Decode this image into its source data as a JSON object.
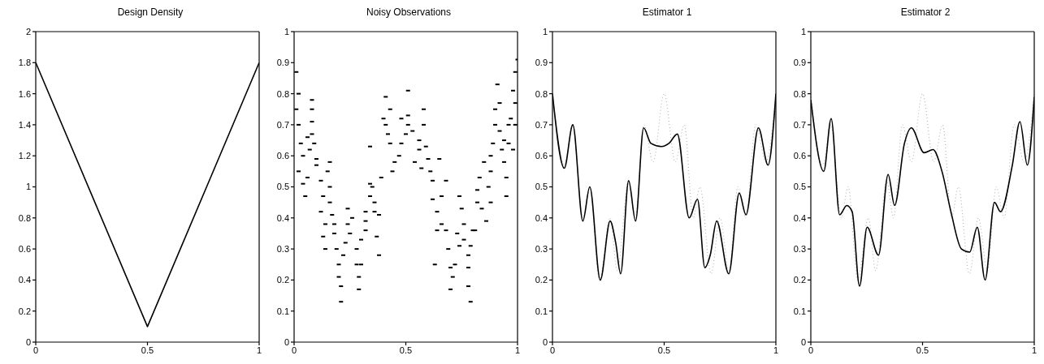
{
  "chart_data": [
    {
      "type": "line",
      "title": "Design Density",
      "xlim": [
        0,
        1
      ],
      "xticks": [
        0,
        0.5,
        1
      ],
      "ylim": [
        0,
        2
      ],
      "yticks": [
        0,
        0.2,
        0.4,
        0.6,
        0.8,
        1,
        1.2,
        1.4,
        1.6,
        1.8,
        2
      ],
      "marker": "none",
      "series": [
        {
          "color": "#000000",
          "line_style": "solid",
          "x": [
            0,
            0.5,
            1
          ],
          "values": [
            1.8,
            0.1,
            1.8
          ]
        }
      ]
    },
    {
      "type": "scatter",
      "title": "Noisy Observations",
      "xlim": [
        0,
        1
      ],
      "xticks": [
        0,
        0.5,
        1
      ],
      "ylim": [
        0,
        1
      ],
      "yticks": [
        0,
        0.1,
        0.2,
        0.3,
        0.4,
        0.5,
        0.6,
        0.7,
        0.8,
        0.9,
        1
      ],
      "marker": "square",
      "series": [
        {
          "color": "#000000",
          "x": [
            0.01,
            0.02,
            0.01,
            0.02,
            0.03,
            0.04,
            0.02,
            0.04,
            0.05,
            0.06,
            0.08,
            0.08,
            0.08,
            0.08,
            0.09,
            0.1,
            0.07,
            0.06,
            0.1,
            0.12,
            0.13,
            0.15,
            0.16,
            0.16,
            0.12,
            0.14,
            0.13,
            0.14,
            0.16,
            0.17,
            0.18,
            0.18,
            0.19,
            0.2,
            0.2,
            0.21,
            0.21,
            0.22,
            0.23,
            0.24,
            0.24,
            0.25,
            0.26,
            0.28,
            0.28,
            0.29,
            0.29,
            0.3,
            0.3,
            0.32,
            0.32,
            0.32,
            0.34,
            0.34,
            0.34,
            0.35,
            0.36,
            0.37,
            0.38,
            0.36,
            0.39,
            0.38,
            0.4,
            0.41,
            0.41,
            0.43,
            0.42,
            0.43,
            0.44,
            0.45,
            0.47,
            0.48,
            0.48,
            0.5,
            0.51,
            0.51,
            0.51,
            0.53,
            0.54,
            0.56,
            0.56,
            0.57,
            0.58,
            0.58,
            0.59,
            0.6,
            0.61,
            0.62,
            0.62,
            0.63,
            0.64,
            0.64,
            0.65,
            0.66,
            0.66,
            0.68,
            0.68,
            0.69,
            0.7,
            0.7,
            0.71,
            0.72,
            0.73,
            0.74,
            0.74,
            0.75,
            0.76,
            0.76,
            0.78,
            0.78,
            0.78,
            0.79,
            0.79,
            0.8,
            0.81,
            0.82,
            0.82,
            0.83,
            0.84,
            0.85,
            0.86,
            0.87,
            0.88,
            0.88,
            0.88,
            0.89,
            0.9,
            0.9,
            0.91,
            0.92,
            0.92,
            0.93,
            0.94,
            0.94,
            0.95,
            0.95,
            0.96,
            0.96,
            0.97,
            0.98,
            0.98,
            0.99,
            0.99,
            0.99,
            1.0
          ],
          "values": [
            0.87,
            0.8,
            0.75,
            0.7,
            0.64,
            0.6,
            0.55,
            0.51,
            0.47,
            0.53,
            0.78,
            0.75,
            0.71,
            0.67,
            0.64,
            0.59,
            0.62,
            0.66,
            0.57,
            0.52,
            0.47,
            0.55,
            0.5,
            0.45,
            0.42,
            0.38,
            0.34,
            0.3,
            0.58,
            0.41,
            0.38,
            0.35,
            0.3,
            0.25,
            0.21,
            0.18,
            0.13,
            0.28,
            0.32,
            0.43,
            0.38,
            0.35,
            0.4,
            0.3,
            0.25,
            0.17,
            0.21,
            0.25,
            0.33,
            0.39,
            0.36,
            0.42,
            0.47,
            0.51,
            0.63,
            0.5,
            0.45,
            0.34,
            0.28,
            0.42,
            0.53,
            0.41,
            0.72,
            0.79,
            0.7,
            0.75,
            0.67,
            0.64,
            0.55,
            0.58,
            0.6,
            0.72,
            0.64,
            0.67,
            0.81,
            0.73,
            0.7,
            0.68,
            0.58,
            0.65,
            0.62,
            0.56,
            0.75,
            0.7,
            0.63,
            0.59,
            0.55,
            0.52,
            0.46,
            0.25,
            0.36,
            0.42,
            0.59,
            0.47,
            0.38,
            0.52,
            0.36,
            0.3,
            0.24,
            0.17,
            0.21,
            0.25,
            0.35,
            0.31,
            0.47,
            0.43,
            0.38,
            0.33,
            0.28,
            0.24,
            0.18,
            0.13,
            0.31,
            0.36,
            0.36,
            0.45,
            0.49,
            0.53,
            0.43,
            0.58,
            0.39,
            0.5,
            0.45,
            0.55,
            0.6,
            0.64,
            0.7,
            0.75,
            0.83,
            0.77,
            0.68,
            0.62,
            0.65,
            0.58,
            0.53,
            0.47,
            0.7,
            0.64,
            0.72,
            0.62,
            0.81,
            0.7,
            0.77,
            0.87,
            0.91
          ]
        }
      ]
    },
    {
      "type": "line",
      "title": "Estimator 1",
      "xlim": [
        0,
        1
      ],
      "xticks": [
        0,
        0.5,
        1
      ],
      "ylim": [
        0,
        1
      ],
      "yticks": [
        0,
        0.1,
        0.2,
        0.3,
        0.4,
        0.5,
        0.6,
        0.7,
        0.8,
        0.9,
        1
      ],
      "marker": "none",
      "series": [
        {
          "color": "#aaaaaa",
          "line_style": "dotted",
          "x": [
            0,
            0.053,
            0.09,
            0.136,
            0.167,
            0.21,
            0.258,
            0.29,
            0.34,
            0.37,
            0.41,
            0.45,
            0.5,
            0.55,
            0.59,
            0.63,
            0.66,
            0.71,
            0.75,
            0.79,
            0.83,
            0.865,
            0.91,
            0.955,
            1
          ],
          "values": [
            0.8,
            0.57,
            0.7,
            0.4,
            0.5,
            0.2,
            0.4,
            0.23,
            0.52,
            0.4,
            0.7,
            0.58,
            0.8,
            0.58,
            0.7,
            0.4,
            0.5,
            0.22,
            0.4,
            0.23,
            0.5,
            0.4,
            0.7,
            0.58,
            0.8
          ]
        },
        {
          "color": "#000000",
          "line_style": "solid",
          "x": [
            0,
            0.053,
            0.091,
            0.136,
            0.167,
            0.214,
            0.258,
            0.283,
            0.305,
            0.341,
            0.372,
            0.408,
            0.441,
            0.488,
            0.521,
            0.559,
            0.612,
            0.649,
            0.682,
            0.706,
            0.735,
            0.789,
            0.836,
            0.866,
            0.922,
            0.965,
            1
          ],
          "values": [
            0.8,
            0.56,
            0.7,
            0.39,
            0.5,
            0.2,
            0.39,
            0.32,
            0.22,
            0.52,
            0.39,
            0.69,
            0.64,
            0.63,
            0.64,
            0.67,
            0.4,
            0.46,
            0.24,
            0.28,
            0.39,
            0.22,
            0.48,
            0.41,
            0.69,
            0.57,
            0.8
          ]
        }
      ]
    },
    {
      "type": "line",
      "title": "Estimator 2",
      "xlim": [
        0,
        1
      ],
      "xticks": [
        0,
        0.5,
        1
      ],
      "ylim": [
        0,
        1
      ],
      "yticks": [
        0,
        0.1,
        0.2,
        0.3,
        0.4,
        0.5,
        0.6,
        0.7,
        0.8,
        0.9,
        1
      ],
      "marker": "none",
      "series": [
        {
          "color": "#aaaaaa",
          "line_style": "dotted",
          "x": [
            0,
            0.053,
            0.09,
            0.136,
            0.167,
            0.21,
            0.258,
            0.29,
            0.34,
            0.37,
            0.41,
            0.45,
            0.5,
            0.55,
            0.59,
            0.63,
            0.66,
            0.71,
            0.75,
            0.79,
            0.83,
            0.865,
            0.91,
            0.955,
            1
          ],
          "values": [
            0.8,
            0.57,
            0.7,
            0.4,
            0.5,
            0.2,
            0.4,
            0.23,
            0.52,
            0.4,
            0.7,
            0.58,
            0.8,
            0.58,
            0.7,
            0.4,
            0.5,
            0.22,
            0.4,
            0.23,
            0.5,
            0.4,
            0.7,
            0.58,
            0.8
          ]
        },
        {
          "color": "#000000",
          "line_style": "solid",
          "x": [
            0,
            0.058,
            0.091,
            0.129,
            0.161,
            0.185,
            0.218,
            0.252,
            0.303,
            0.346,
            0.375,
            0.419,
            0.45,
            0.507,
            0.547,
            0.587,
            0.627,
            0.674,
            0.711,
            0.745,
            0.78,
            0.822,
            0.849,
            0.902,
            0.936,
            0.969,
            1
          ],
          "values": [
            0.78,
            0.55,
            0.72,
            0.41,
            0.44,
            0.42,
            0.18,
            0.37,
            0.28,
            0.54,
            0.44,
            0.64,
            0.69,
            0.61,
            0.62,
            0.55,
            0.42,
            0.3,
            0.29,
            0.37,
            0.2,
            0.45,
            0.42,
            0.57,
            0.71,
            0.57,
            0.79
          ]
        }
      ]
    }
  ]
}
